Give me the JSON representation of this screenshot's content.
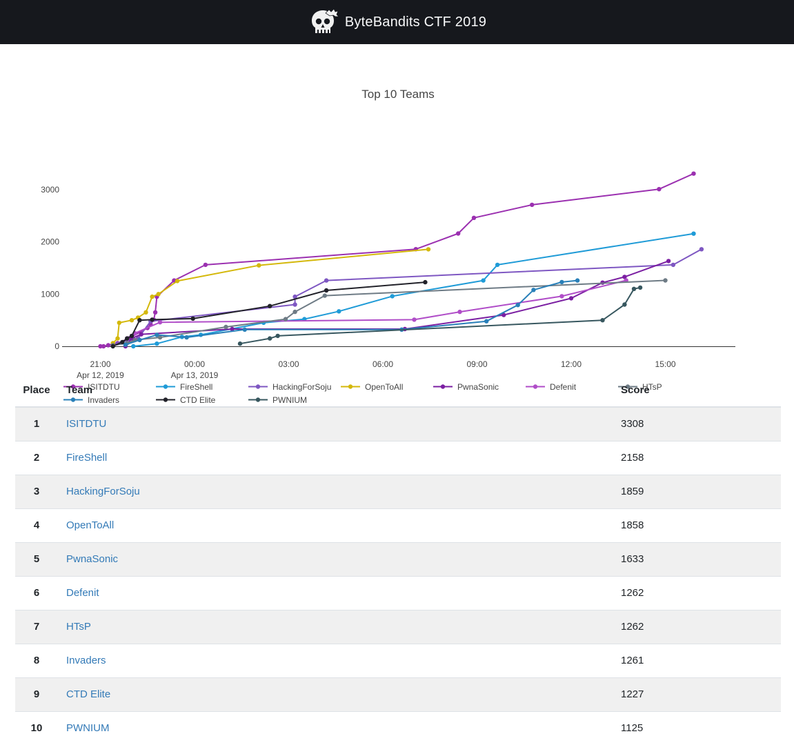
{
  "header": {
    "title": "ByteBandits CTF 2019",
    "logo_icon": "skull-logo-icon"
  },
  "chart_data": {
    "type": "line",
    "title": "Top 10 Teams",
    "x_ticks": [
      {
        "label": "21:00",
        "sublabel": "Apr 12, 2019",
        "t": 0
      },
      {
        "label": "00:00",
        "sublabel": "Apr 13, 2019",
        "t": 3
      },
      {
        "label": "03:00",
        "sublabel": "",
        "t": 6
      },
      {
        "label": "06:00",
        "sublabel": "",
        "t": 9
      },
      {
        "label": "09:00",
        "sublabel": "",
        "t": 12
      },
      {
        "label": "12:00",
        "sublabel": "",
        "t": 15
      },
      {
        "label": "15:00",
        "sublabel": "",
        "t": 18
      }
    ],
    "x_unit": "hours since 21:00 Apr 12, 2019",
    "xlim": [
      -1.22,
      20.23
    ],
    "y_ticks": [
      0,
      1000,
      2000,
      3000
    ],
    "ylim": [
      -150,
      3550
    ],
    "grid": false,
    "legend_position": "bottom",
    "series": [
      {
        "name": "ISITDTU",
        "color": "#9b30b0",
        "points": [
          [
            0,
            0
          ],
          [
            0.1,
            0
          ],
          [
            0.25,
            20
          ],
          [
            0.55,
            60
          ],
          [
            0.9,
            150
          ],
          [
            1.5,
            350
          ],
          [
            1.6,
            420
          ],
          [
            1.7,
            510
          ],
          [
            1.75,
            650
          ],
          [
            1.8,
            950
          ],
          [
            2.35,
            1260
          ],
          [
            3.35,
            1560
          ],
          [
            10.05,
            1860
          ],
          [
            11.4,
            2160
          ],
          [
            11.9,
            2460
          ],
          [
            13.75,
            2710
          ],
          [
            17.8,
            3010
          ],
          [
            18.9,
            3308
          ]
        ]
      },
      {
        "name": "FireShell",
        "color": "#1f9bd7",
        "points": [
          [
            1.05,
            0
          ],
          [
            1.8,
            50
          ],
          [
            2.6,
            180
          ],
          [
            3.2,
            220
          ],
          [
            5.2,
            450
          ],
          [
            6.5,
            520
          ],
          [
            7.6,
            670
          ],
          [
            9.3,
            960
          ],
          [
            12.2,
            1260
          ],
          [
            12.65,
            1560
          ],
          [
            18.9,
            2158
          ]
        ]
      },
      {
        "name": "HackingForSoju",
        "color": "#7e57c2",
        "points": [
          [
            0.4,
            50
          ],
          [
            1.2,
            150
          ],
          [
            1.6,
            480
          ],
          [
            6.2,
            800
          ],
          [
            6.2,
            950
          ],
          [
            7.2,
            1260
          ],
          [
            18.25,
            1560
          ],
          [
            19.15,
            1859
          ]
        ]
      },
      {
        "name": "OpenToAll",
        "color": "#d4b80a",
        "points": [
          [
            0.4,
            60
          ],
          [
            0.55,
            150
          ],
          [
            0.6,
            450
          ],
          [
            1.0,
            500
          ],
          [
            1.2,
            550
          ],
          [
            1.45,
            650
          ],
          [
            1.65,
            950
          ],
          [
            1.85,
            1000
          ],
          [
            2.45,
            1250
          ],
          [
            5.05,
            1550
          ],
          [
            10.45,
            1858
          ]
        ]
      },
      {
        "name": "PwnaSonic",
        "color": "#7b1fa2",
        "points": [
          [
            0.8,
            0
          ],
          [
            1.0,
            150
          ],
          [
            1.3,
            230
          ],
          [
            4.2,
            330
          ],
          [
            9.7,
            330
          ],
          [
            12.85,
            600
          ],
          [
            15.0,
            920
          ],
          [
            16.0,
            1220
          ],
          [
            16.7,
            1330
          ],
          [
            18.1,
            1633
          ]
        ]
      },
      {
        "name": "Defenit",
        "color": "#b04dc8",
        "points": [
          [
            0.85,
            150
          ],
          [
            1.1,
            250
          ],
          [
            1.9,
            460
          ],
          [
            10.0,
            510
          ],
          [
            11.45,
            660
          ],
          [
            14.7,
            960
          ],
          [
            16.75,
            1262
          ]
        ]
      },
      {
        "name": "HTsP",
        "color": "#6e7b85",
        "points": [
          [
            0.4,
            20
          ],
          [
            0.85,
            60
          ],
          [
            1.1,
            120
          ],
          [
            1.9,
            170
          ],
          [
            4.0,
            370
          ],
          [
            5.9,
            520
          ],
          [
            6.2,
            660
          ],
          [
            7.15,
            970
          ],
          [
            18.0,
            1262
          ]
        ]
      },
      {
        "name": "Invaders",
        "color": "#2980b9",
        "points": [
          [
            0.8,
            30
          ],
          [
            1.25,
            120
          ],
          [
            1.8,
            220
          ],
          [
            2.75,
            170
          ],
          [
            4.6,
            320
          ],
          [
            9.6,
            320
          ],
          [
            12.3,
            480
          ],
          [
            13.3,
            790
          ],
          [
            13.8,
            1080
          ],
          [
            14.7,
            1230
          ],
          [
            15.2,
            1261
          ]
        ]
      },
      {
        "name": "CTD Elite",
        "color": "#22222a",
        "points": [
          [
            0.4,
            0
          ],
          [
            0.7,
            80
          ],
          [
            0.85,
            150
          ],
          [
            1.0,
            200
          ],
          [
            1.25,
            500
          ],
          [
            1.65,
            510
          ],
          [
            2.95,
            530
          ],
          [
            5.4,
            770
          ],
          [
            7.2,
            1070
          ],
          [
            10.35,
            1227
          ]
        ]
      },
      {
        "name": "PWNIUM",
        "color": "#37575f",
        "points": [
          [
            4.45,
            50
          ],
          [
            5.4,
            150
          ],
          [
            5.65,
            200
          ],
          [
            16.0,
            500
          ],
          [
            16.7,
            800
          ],
          [
            17.0,
            1100
          ],
          [
            17.2,
            1125
          ]
        ]
      }
    ]
  },
  "scoreboard": {
    "columns": {
      "place": "Place",
      "team": "Team",
      "score": "Score"
    },
    "rows": [
      {
        "place": "1",
        "team": "ISITDTU",
        "score": "3308"
      },
      {
        "place": "2",
        "team": "FireShell",
        "score": "2158"
      },
      {
        "place": "3",
        "team": "HackingForSoju",
        "score": "1859"
      },
      {
        "place": "4",
        "team": "OpenToAll",
        "score": "1858"
      },
      {
        "place": "5",
        "team": "PwnaSonic",
        "score": "1633"
      },
      {
        "place": "6",
        "team": "Defenit",
        "score": "1262"
      },
      {
        "place": "7",
        "team": "HTsP",
        "score": "1262"
      },
      {
        "place": "8",
        "team": "Invaders",
        "score": "1261"
      },
      {
        "place": "9",
        "team": "CTD Elite",
        "score": "1227"
      },
      {
        "place": "10",
        "team": "PWNIUM",
        "score": "1125"
      }
    ]
  }
}
